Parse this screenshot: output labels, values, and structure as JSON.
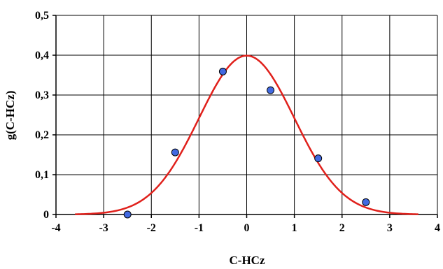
{
  "chart_data": {
    "type": "scatter",
    "title": "",
    "xlabel": "C-HCz",
    "ylabel": "g(C-HCz)",
    "xlim": [
      -4,
      4
    ],
    "ylim": [
      0,
      0.5
    ],
    "x_ticks": [
      "-4",
      "-3",
      "-2",
      "-1",
      "0",
      "1",
      "2",
      "3",
      "4"
    ],
    "y_ticks": [
      "0",
      "0,1",
      "0,2",
      "0,3",
      "0,4",
      "0,5"
    ],
    "grid": true,
    "legend": "none",
    "series": [
      {
        "kind": "points",
        "color": "#4169e1",
        "x": [
          -2.5,
          -1.5,
          -0.5,
          0.5,
          1.5,
          2.5
        ],
        "y": [
          0.0,
          0.156,
          0.359,
          0.312,
          0.141,
          0.031
        ]
      },
      {
        "kind": "curve",
        "color": "#e0201b",
        "curve_type": "normal-density",
        "mean": 0,
        "sd": 1,
        "x_range": [
          -3.6,
          3.6
        ]
      }
    ]
  }
}
